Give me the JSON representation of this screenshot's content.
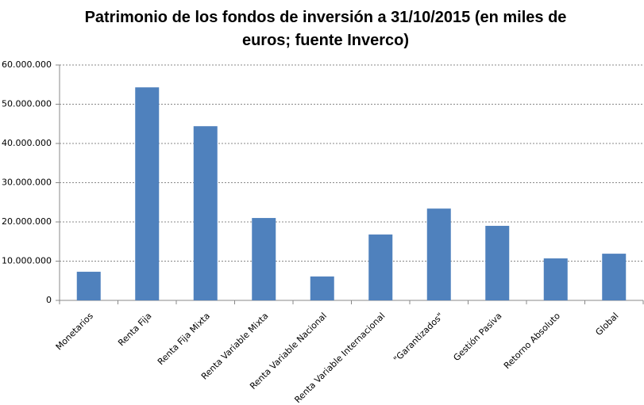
{
  "chart_data": {
    "type": "bar",
    "title": "Patrimonio de los fondos de inversión a 31/10/2015  (en miles de euros; fuente Inverco)",
    "categories": [
      "Monetarios",
      "Renta Fija",
      "Renta Fija Mixta",
      "Renta Variable Mixta",
      "Renta Variable Nacional",
      "Renta Variable Internacional",
      "\"Garantizados\"",
      "Gestión Pasiva",
      "Retorno Absoluto",
      "Global"
    ],
    "values": [
      7300000,
      54300000,
      44400000,
      21000000,
      6100000,
      16800000,
      23400000,
      19000000,
      10700000,
      11900000
    ],
    "color": "#4f81bd",
    "ylim": [
      0,
      60000000
    ],
    "yticks": [
      0,
      {
        "value": 10000000,
        "label": "10.000.000"
      },
      {
        "value": 20000000,
        "label": "20.000.000"
      },
      {
        "value": 30000000,
        "label": "30.000.000"
      },
      {
        "value": 40000000,
        "label": "40.000.000"
      },
      {
        "value": 50000000,
        "label": "50.000.000"
      },
      {
        "value": 60000000,
        "label": "60.000.000"
      }
    ],
    "grid": true
  }
}
